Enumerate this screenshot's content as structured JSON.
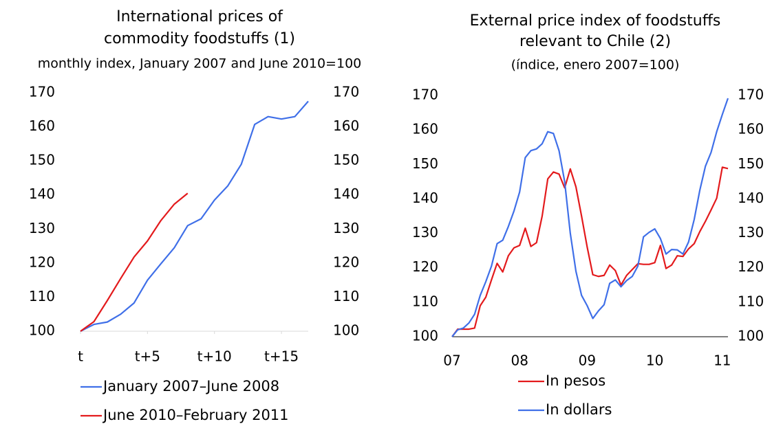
{
  "chart_data": [
    {
      "type": "line",
      "title": [
        "International prices of",
        "commodity foodstuffs (1)"
      ],
      "subtitle": "monthly index, January 2007 and June 2010=100",
      "xlim": [
        0,
        17
      ],
      "xticks": [
        {
          "value": 0,
          "label": "t"
        },
        {
          "value": 5,
          "label": "t+5"
        },
        {
          "value": 10,
          "label": "t+10"
        },
        {
          "value": 15,
          "label": "t+15"
        }
      ],
      "ylim": [
        100,
        170
      ],
      "yticks": [
        100,
        110,
        120,
        130,
        140,
        150,
        160,
        170
      ],
      "legend": "bottom",
      "series": [
        {
          "name": "January 2007–June 2008",
          "color": "#3f6fe8",
          "x": [
            0,
            1,
            2,
            3,
            4,
            5,
            6,
            7,
            8,
            9,
            10,
            11,
            12,
            13,
            14,
            15,
            16,
            17
          ],
          "values": [
            100,
            102,
            102.7,
            105,
            108.3,
            115,
            119.8,
            124.5,
            131,
            133,
            138.5,
            142.7,
            149,
            160.7,
            163,
            162.3,
            163,
            167.5
          ]
        },
        {
          "name": "June 2010–February 2011",
          "color": "#e31a1c",
          "x": [
            0,
            1,
            2,
            3,
            4,
            5,
            6,
            7,
            8
          ],
          "values": [
            100,
            102.8,
            109,
            115.5,
            121.8,
            126.5,
            132.5,
            137.3,
            140.5
          ]
        }
      ]
    },
    {
      "type": "line",
      "title": [
        "External price index of foodstuffs",
        "relevant to Chile (2)"
      ],
      "subtitle": "(índice, enero 2007=100)",
      "categories": [
        "07",
        null,
        null,
        null,
        null,
        null,
        null,
        null,
        null,
        null,
        null,
        null,
        "08",
        null,
        null,
        null,
        null,
        null,
        null,
        null,
        null,
        null,
        null,
        null,
        "09",
        null,
        null,
        null,
        null,
        null,
        null,
        null,
        null,
        null,
        null,
        null,
        "10",
        null,
        null,
        null,
        null,
        null,
        null,
        null,
        null,
        null,
        null,
        null,
        "11",
        null
      ],
      "ylim": [
        100,
        170
      ],
      "yticks": [
        100,
        110,
        120,
        130,
        140,
        150,
        160,
        170
      ],
      "legend": "bottom",
      "series": [
        {
          "name": "In pesos",
          "color": "#e31a1c",
          "values": [
            100,
            102.2,
            102.2,
            102.2,
            102.5,
            109,
            111.5,
            116.5,
            121.3,
            118.8,
            123.5,
            125.8,
            126.5,
            131.5,
            126.2,
            127.3,
            135,
            145.8,
            147.8,
            147.2,
            143.2,
            148.7,
            143.5,
            135,
            126,
            118,
            117.5,
            117.8,
            120.8,
            119.2,
            115,
            117.8,
            119.5,
            121.2,
            121,
            121,
            121.5,
            126.5,
            119.8,
            120.8,
            123.5,
            123.3,
            125.5,
            127,
            130.5,
            133.5,
            136.8,
            140.2,
            149.2,
            148.8
          ]
        },
        {
          "name": "In dollars",
          "color": "#3f6fe8",
          "values": [
            100,
            102,
            102.5,
            104,
            106.5,
            112,
            116,
            120.5,
            127,
            128,
            132,
            136.5,
            142,
            152,
            154,
            154.5,
            156,
            159.5,
            159,
            154,
            145,
            130,
            119,
            112,
            109,
            105.3,
            107.5,
            109.3,
            115.5,
            116.5,
            114.5,
            116.3,
            117.5,
            120.5,
            129,
            130.3,
            131.3,
            128.5,
            124,
            125.3,
            125.2,
            124,
            127.5,
            134,
            142.5,
            149.5,
            153.5,
            159.5,
            164.5,
            169.2
          ]
        }
      ]
    }
  ]
}
